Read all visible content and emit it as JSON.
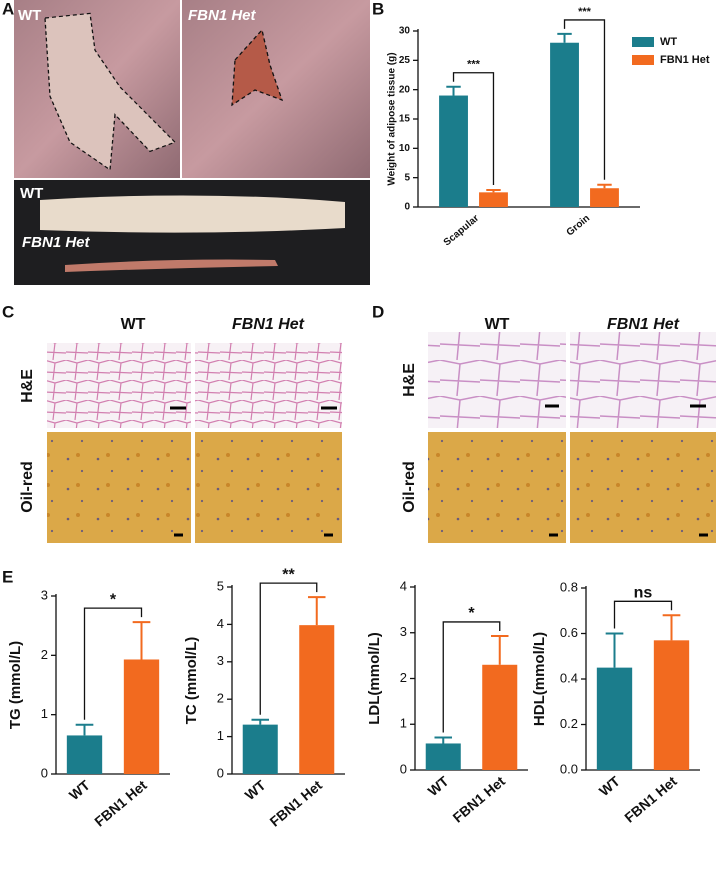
{
  "panel_labels": [
    "A",
    "B",
    "C",
    "D",
    "E"
  ],
  "photo_labels": [
    "WT",
    "FBN1 Het",
    "WT",
    "FBN1 Het"
  ],
  "histology": {
    "C": {
      "columns": [
        "WT",
        "FBN1 Het"
      ],
      "rows": [
        "H&E",
        "Oil-red"
      ]
    },
    "D": {
      "columns": [
        "WT",
        "FBN1 Het"
      ],
      "rows": [
        "H&E",
        "Oil-red"
      ]
    }
  },
  "chart_data": [
    {
      "type": "grouped-bar",
      "y_label": "Weight of adipose tissue (g)",
      "categories": [
        "Scapular",
        "Groin"
      ],
      "series": [
        {
          "name": "WT",
          "color": "#1b7d8c",
          "values": [
            19,
            28
          ],
          "errors": [
            1.5,
            1.5
          ]
        },
        {
          "name": "FBN1 Het",
          "color": "#f26a1f",
          "values": [
            2.5,
            3.2
          ],
          "errors": [
            0.4,
            0.6
          ]
        }
      ],
      "annotations": [
        "***",
        "***"
      ],
      "ylim": [
        0,
        30
      ],
      "yticks": [
        0,
        5,
        10,
        15,
        20,
        25,
        30
      ],
      "legend": "right"
    },
    {
      "type": "bar",
      "y_label": "TG (mmol/L)",
      "categories": [
        "WT",
        "FBN1 Het"
      ],
      "values": [
        0.65,
        1.93
      ],
      "errors": [
        0.18,
        0.63
      ],
      "colors": [
        "#1b7d8c",
        "#f26a1f"
      ],
      "annotation": "*",
      "ylim": [
        0,
        3
      ],
      "yticks": [
        0,
        1,
        2,
        3
      ]
    },
    {
      "type": "bar",
      "y_label": "TC (mmol/L)",
      "categories": [
        "WT",
        "FBN1 Het"
      ],
      "values": [
        1.32,
        3.98
      ],
      "errors": [
        0.13,
        0.75
      ],
      "colors": [
        "#1b7d8c",
        "#f26a1f"
      ],
      "annotation": "**",
      "ylim": [
        0,
        5
      ],
      "yticks": [
        0,
        1,
        2,
        3,
        4,
        5
      ]
    },
    {
      "type": "bar",
      "y_label": "LDL(mmol/L)",
      "categories": [
        "WT",
        "FBN1 Het"
      ],
      "values": [
        0.58,
        2.3
      ],
      "errors": [
        0.13,
        0.63
      ],
      "colors": [
        "#1b7d8c",
        "#f26a1f"
      ],
      "annotation": "*",
      "ylim": [
        0,
        4
      ],
      "yticks": [
        0,
        1,
        2,
        3,
        4
      ]
    },
    {
      "type": "bar",
      "y_label": "HDL(mmol/L)",
      "categories": [
        "WT",
        "FBN1 Het"
      ],
      "values": [
        0.45,
        0.57
      ],
      "errors": [
        0.15,
        0.11
      ],
      "colors": [
        "#1b7d8c",
        "#f26a1f"
      ],
      "annotation": "ns",
      "ylim": [
        0,
        0.8
      ],
      "yticks": [
        {
          "value": 0,
          "label": "0.0"
        },
        0.2,
        0.4,
        0.6,
        0.8
      ]
    }
  ]
}
